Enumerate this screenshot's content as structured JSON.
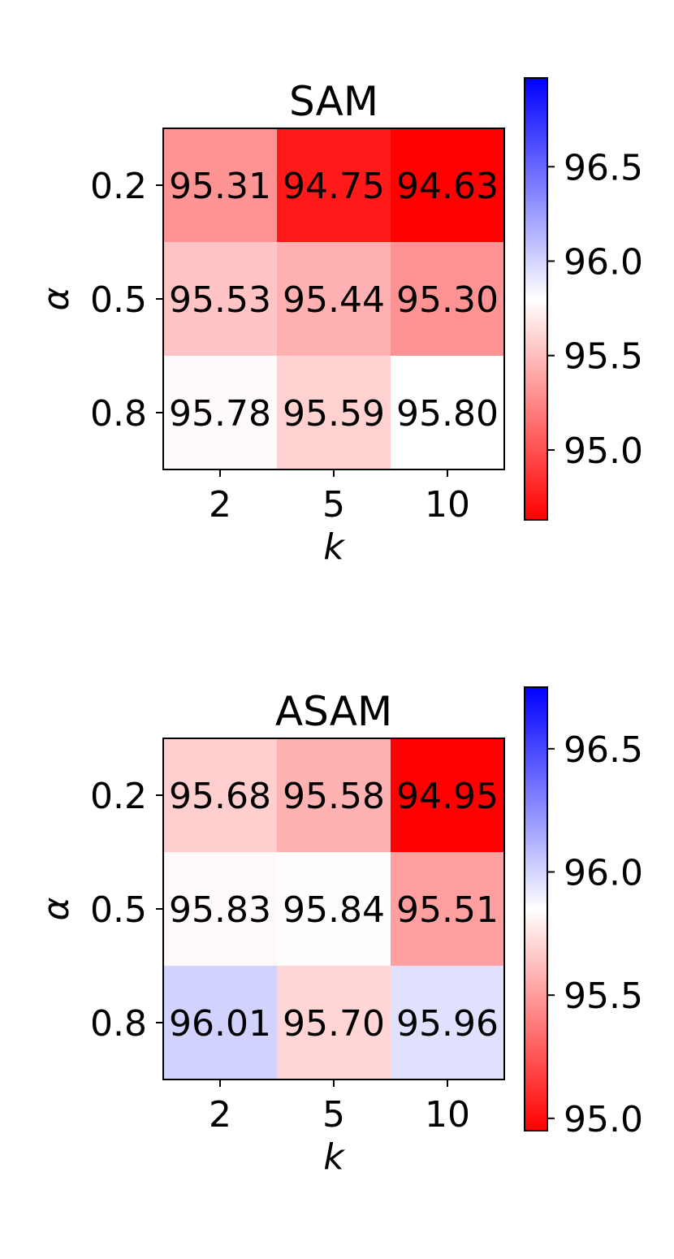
{
  "chart_data": [
    {
      "type": "heatmap",
      "title": "SAM",
      "xlabel": "k",
      "ylabel": "α",
      "x_categories": [
        "2",
        "5",
        "10"
      ],
      "y_categories": [
        "0.2",
        "0.5",
        "0.8"
      ],
      "values": [
        [
          95.31,
          94.75,
          94.63
        ],
        [
          95.53,
          95.44,
          95.3
        ],
        [
          95.78,
          95.59,
          95.8
        ]
      ],
      "cell_labels": [
        [
          "95.31",
          "94.75",
          "94.63"
        ],
        [
          "95.53",
          "95.44",
          "95.30"
        ],
        [
          "95.78",
          "95.59",
          "95.80"
        ]
      ],
      "colormap": "bwr",
      "color_range": [
        94.63,
        96.97
      ],
      "colorbar_ticks": [
        {
          "value": 95.0,
          "label": "95.0"
        },
        {
          "value": 95.5,
          "label": "95.5"
        },
        {
          "value": 96.0,
          "label": "96.0"
        },
        {
          "value": 96.5,
          "label": "96.5"
        }
      ]
    },
    {
      "type": "heatmap",
      "title": "ASAM",
      "xlabel": "k",
      "ylabel": "α",
      "x_categories": [
        "2",
        "5",
        "10"
      ],
      "y_categories": [
        "0.2",
        "0.5",
        "0.8"
      ],
      "values": [
        [
          95.68,
          95.58,
          94.95
        ],
        [
          95.83,
          95.84,
          95.51
        ],
        [
          96.01,
          95.7,
          95.96
        ]
      ],
      "cell_labels": [
        [
          "95.68",
          "95.58",
          "94.95"
        ],
        [
          "95.83",
          "95.84",
          "95.51"
        ],
        [
          "96.01",
          "95.70",
          "95.96"
        ]
      ],
      "colormap": "bwr",
      "color_range": [
        94.95,
        96.75
      ],
      "colorbar_ticks": [
        {
          "value": 95.0,
          "label": "95.0"
        },
        {
          "value": 95.5,
          "label": "95.5"
        },
        {
          "value": 96.0,
          "label": "96.0"
        },
        {
          "value": 96.5,
          "label": "96.5"
        }
      ]
    }
  ],
  "colors": {
    "low": "#ff0000",
    "mid": "#ffffff",
    "high": "#0000ff"
  }
}
